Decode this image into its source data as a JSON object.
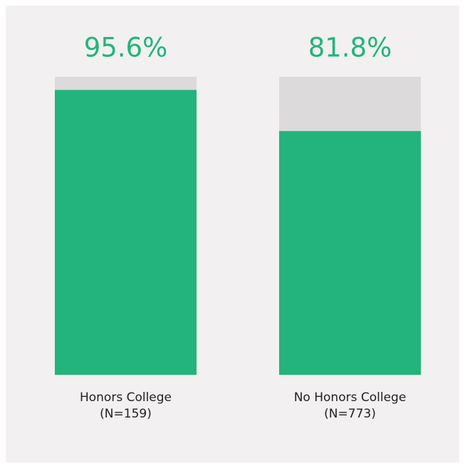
{
  "chart_data": {
    "type": "bar",
    "categories": [
      "Honors College",
      "No Honors College"
    ],
    "category_notes": [
      "(N=159)",
      "(N=773)"
    ],
    "values": [
      95.6,
      81.8
    ],
    "value_labels": [
      "95.6%",
      "81.8%"
    ],
    "ylim": [
      0,
      100
    ],
    "color": "#22b47c",
    "track_color": "#dcdadb",
    "background": "#f2f0f1"
  }
}
